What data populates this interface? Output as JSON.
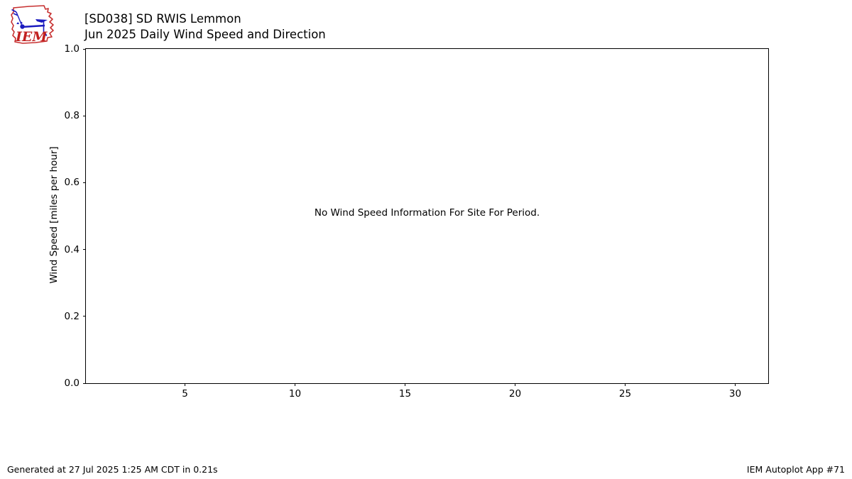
{
  "header": {
    "logo_text": "IEM",
    "title_line1": "[SD038] SD RWIS Lemmon",
    "title_line2": "Jun 2025 Daily Wind Speed and Direction"
  },
  "chart_data": {
    "type": "line",
    "title": "[SD038] SD RWIS Lemmon",
    "subtitle": "Jun 2025 Daily Wind Speed and Direction",
    "xlabel": "",
    "ylabel": "Wind Speed [miles per hour]",
    "x_ticks": [
      5,
      10,
      15,
      20,
      25,
      30
    ],
    "y_ticks": [
      "1.0",
      "0.8",
      "0.6",
      "0.4",
      "0.2",
      "0.0"
    ],
    "xlim": [
      0.5,
      31.5
    ],
    "ylim": [
      0.0,
      1.0
    ],
    "grid": false,
    "legend": "none",
    "series": [],
    "annotation": "No Wind Speed Information For Site For Period."
  },
  "footer": {
    "generated": "Generated at 27 Jul 2025 1:25 AM CDT in 0.21s",
    "app": "IEM Autoplot App #71"
  },
  "colors": {
    "logo_red": "#c73030",
    "logo_blue": "#1b1bbf",
    "axis": "#000000",
    "background": "#ffffff"
  }
}
